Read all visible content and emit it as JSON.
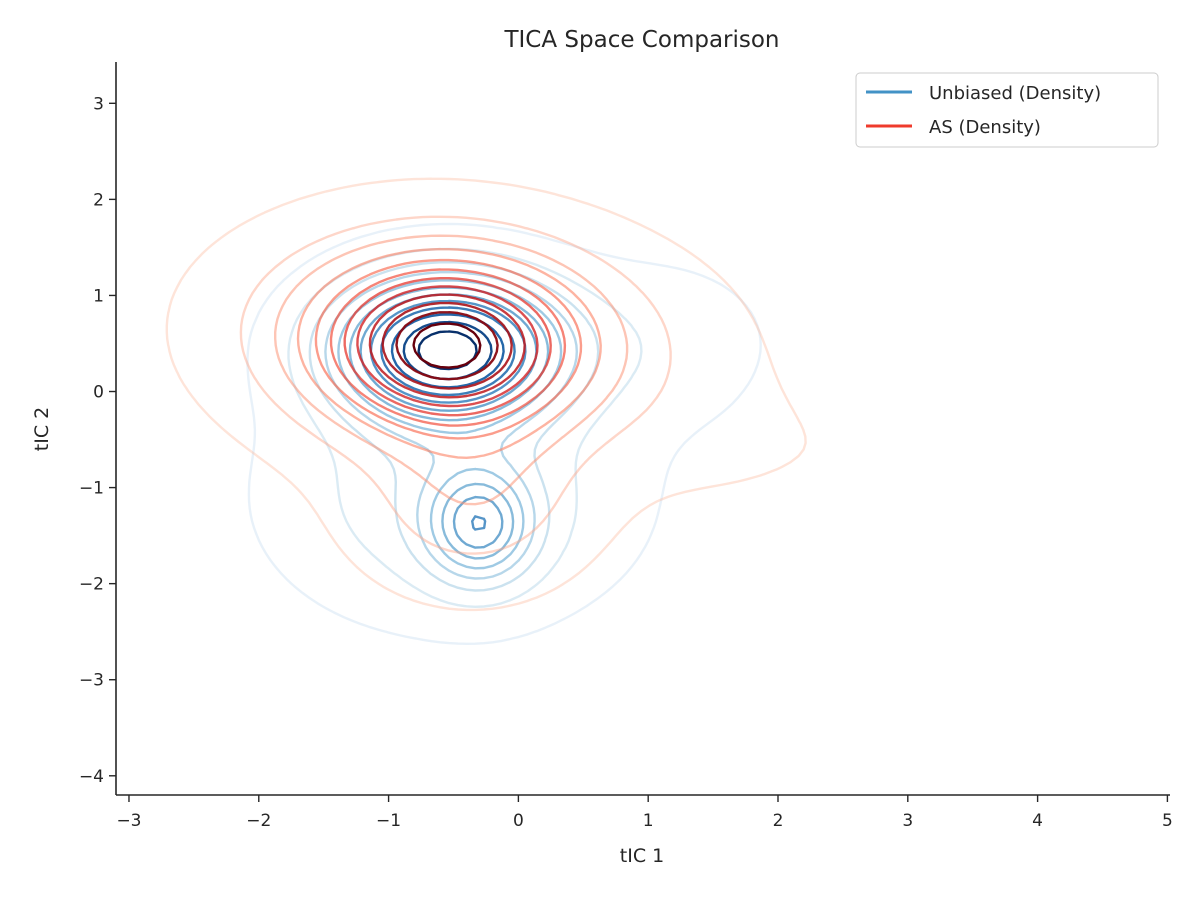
{
  "chart_data": {
    "type": "contour",
    "title": "TICA Space Comparison",
    "xlabel": "tIC 1",
    "ylabel": "tIC 2",
    "xlim": [
      -3.1,
      5.02
    ],
    "ylim": [
      -4.2,
      3.43
    ],
    "xticks": [
      -3,
      -2,
      -1,
      0,
      1,
      2,
      3,
      4,
      5
    ],
    "yticks": [
      -4,
      -3,
      -2,
      -1,
      0,
      1,
      2,
      3
    ],
    "xtick_labels": [
      "−3",
      "−2",
      "−1",
      "0",
      "1",
      "2",
      "3",
      "4",
      "5"
    ],
    "ytick_labels": [
      "−4",
      "−3",
      "−2",
      "−1",
      "0",
      "1",
      "2",
      "3"
    ],
    "grid": false,
    "legend_position": "top-right",
    "series": [
      {
        "name": "Unbiased (Density)",
        "color": "#4292c6",
        "colormap": "Blues",
        "levels": 12,
        "modes": [
          {
            "x": -0.55,
            "y": 0.45,
            "sx": 0.58,
            "sy": 0.5,
            "w": 1.0
          },
          {
            "x": -0.3,
            "y": -1.4,
            "sx": 0.28,
            "sy": 0.4,
            "w": 0.45
          },
          {
            "x": -0.5,
            "y": -1.1,
            "sx": 0.85,
            "sy": 0.8,
            "w": 0.2
          },
          {
            "x": 1.1,
            "y": 0.5,
            "sx": 0.6,
            "sy": 0.6,
            "w": 0.08
          },
          {
            "x": 2.4,
            "y": -0.6,
            "sx": 0.4,
            "sy": 0.3,
            "w": 0.025
          }
        ]
      },
      {
        "name": "AS (Density)",
        "color": "#ef3b2c",
        "colormap": "Reds",
        "levels": 12,
        "modes": [
          {
            "x": -0.55,
            "y": 0.45,
            "sx": 0.6,
            "sy": 0.55,
            "w": 1.0
          },
          {
            "x": -0.75,
            "y": 0.7,
            "sx": 0.95,
            "sy": 0.72,
            "w": 0.38
          },
          {
            "x": -0.35,
            "y": -1.1,
            "sx": 0.55,
            "sy": 0.6,
            "w": 0.22
          },
          {
            "x": 0.6,
            "y": 0.3,
            "sx": 0.85,
            "sy": 0.75,
            "w": 0.12
          },
          {
            "x": 1.8,
            "y": -0.6,
            "sx": 0.6,
            "sy": 0.5,
            "w": 0.035
          },
          {
            "x": 2.7,
            "y": -0.7,
            "sx": 0.4,
            "sy": 0.45,
            "w": 0.018
          },
          {
            "x": -0.55,
            "y": -1.0,
            "sx": 1.3,
            "sy": 1.2,
            "w": 0.03
          }
        ]
      }
    ]
  }
}
